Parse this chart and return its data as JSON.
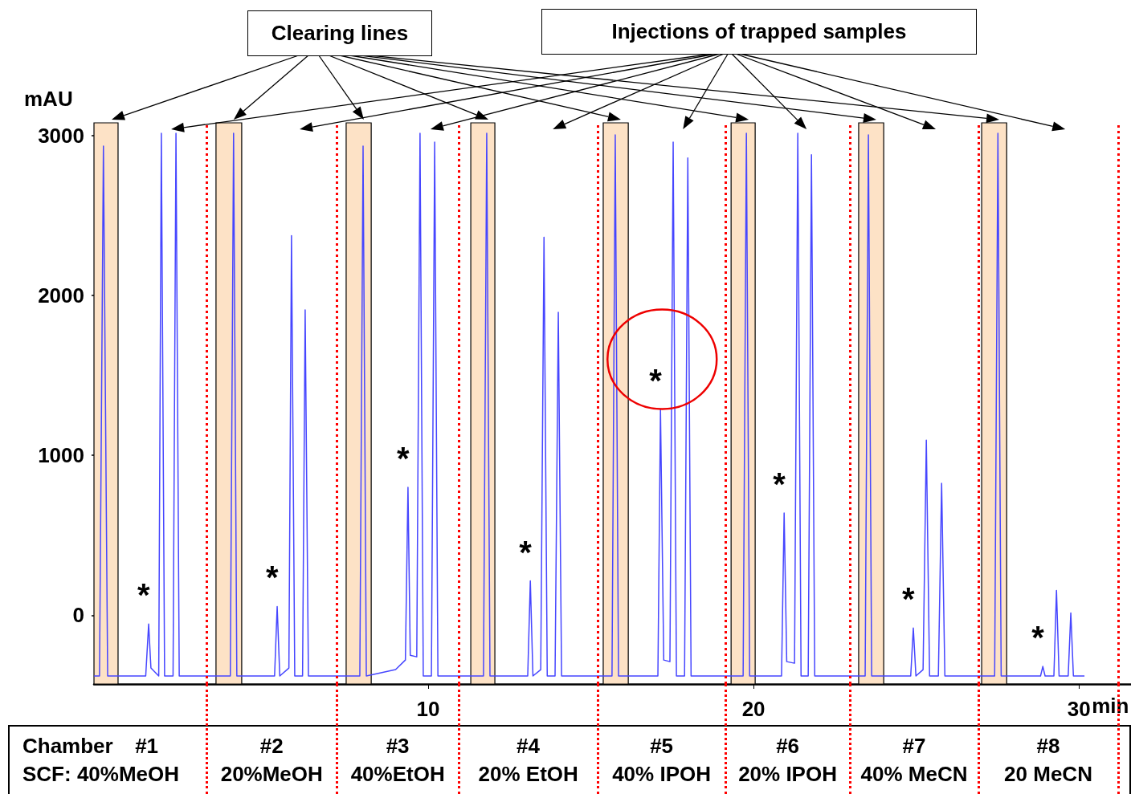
{
  "chart_data": {
    "type": "line",
    "xlabel": "min",
    "ylabel": "mAU",
    "xlim": [
      -0.27,
      31.6
    ],
    "xticks": [
      10,
      20,
      30
    ],
    "ylim": [
      -430,
      3080
    ],
    "yticks": [
      0,
      1000,
      2000,
      3000
    ],
    "series": [
      {
        "color": "#4646ff",
        "x": [
          -0.27,
          -0.1,
          0.02,
          0.15,
          1.32,
          1.41,
          1.48,
          1.72,
          1.8,
          1.9,
          2.16,
          2.25,
          2.35,
          3.92,
          4.02,
          4.12,
          5.28,
          5.36,
          5.44,
          5.72,
          5.8,
          5.9,
          6.14,
          6.22,
          6.32,
          7.9,
          8.0,
          8.1,
          9.0,
          9.3,
          9.38,
          9.45,
          9.65,
          9.75,
          9.85,
          10.1,
          10.2,
          10.3,
          11.7,
          11.8,
          11.9,
          13.06,
          13.14,
          13.22,
          13.46,
          13.56,
          13.66,
          13.9,
          14.0,
          14.1,
          15.65,
          15.75,
          15.85,
          17.06,
          17.14,
          17.24,
          17.43,
          17.53,
          17.63,
          17.88,
          17.98,
          18.08,
          19.68,
          19.78,
          19.88,
          20.86,
          20.94,
          21.02,
          21.26,
          21.36,
          21.46,
          21.68,
          21.78,
          21.88,
          23.43,
          23.53,
          23.63,
          24.83,
          24.91,
          24.99,
          25.21,
          25.31,
          25.41,
          25.68,
          25.78,
          25.88,
          27.41,
          27.51,
          27.61,
          28.82,
          28.89,
          28.96,
          29.23,
          29.31,
          29.39,
          29.67,
          29.75,
          29.83,
          30.17
        ],
        "values": [
          -380,
          -380,
          2935,
          -380,
          -380,
          -55,
          -330,
          -380,
          3015,
          -380,
          -380,
          3015,
          -380,
          -380,
          3015,
          -380,
          -380,
          55,
          -380,
          -330,
          2375,
          -380,
          -380,
          1910,
          -380,
          -380,
          2935,
          -380,
          -340,
          -280,
          800,
          -250,
          -260,
          3015,
          -380,
          -380,
          2960,
          -380,
          -380,
          3015,
          -380,
          -380,
          215,
          -380,
          -340,
          2365,
          -380,
          -380,
          1895,
          -380,
          -380,
          3005,
          -380,
          -380,
          1285,
          -280,
          -290,
          2960,
          -380,
          -380,
          2860,
          -380,
          -380,
          3015,
          -380,
          -380,
          640,
          -290,
          -300,
          3015,
          -380,
          -380,
          2880,
          -380,
          -380,
          3005,
          -380,
          -380,
          -80,
          -380,
          -340,
          1095,
          -380,
          -380,
          825,
          -380,
          -380,
          3015,
          -380,
          -380,
          -320,
          -380,
          -380,
          155,
          -380,
          -380,
          15,
          -380,
          -380
        ]
      }
    ],
    "bands": [
      {
        "axis": "x",
        "from": -0.27,
        "to": 0.47,
        "color": "#fde2c6"
      },
      {
        "axis": "x",
        "from": 3.48,
        "to": 4.27,
        "color": "#fde2c6"
      },
      {
        "axis": "x",
        "from": 7.48,
        "to": 8.25,
        "color": "#fde2c6"
      },
      {
        "axis": "x",
        "from": 11.31,
        "to": 12.05,
        "color": "#fde2c6"
      },
      {
        "axis": "x",
        "from": 15.38,
        "to": 16.15,
        "color": "#fde2c6"
      },
      {
        "axis": "x",
        "from": 19.31,
        "to": 20.05,
        "color": "#fde2c6"
      },
      {
        "axis": "x",
        "from": 23.23,
        "to": 24.0,
        "color": "#fde2c6"
      },
      {
        "axis": "x",
        "from": 27.01,
        "to": 27.78,
        "color": "#fde2c6"
      }
    ],
    "ref_lines": [
      {
        "axis": "x",
        "value": 3.19,
        "color": "#ff0000",
        "line_style": "dotted"
      },
      {
        "axis": "x",
        "value": 7.19,
        "color": "#ff0000",
        "line_style": "dotted"
      },
      {
        "axis": "x",
        "value": 10.94,
        "color": "#ff0000",
        "line_style": "dotted"
      },
      {
        "axis": "x",
        "value": 15.21,
        "color": "#ff0000",
        "line_style": "dotted"
      },
      {
        "axis": "x",
        "value": 19.14,
        "color": "#ff0000",
        "line_style": "dotted"
      },
      {
        "axis": "x",
        "value": 22.96,
        "color": "#ff0000",
        "line_style": "dotted"
      },
      {
        "axis": "x",
        "value": 26.91,
        "color": "#ff0000",
        "line_style": "dotted"
      },
      {
        "axis": "x",
        "value": 31.21,
        "color": "#ff0000",
        "line_style": "dotted"
      }
    ],
    "annotations": [
      "Clearing lines",
      "Injections of trapped samples",
      {
        "text": "*",
        "x": 1.41,
        "y": -55
      },
      {
        "text": "*",
        "x": 5.36,
        "y": 55
      },
      {
        "text": "*",
        "x": 9.38,
        "y": 800
      },
      {
        "text": "*",
        "x": 13.14,
        "y": 215
      },
      {
        "text": "*",
        "x": 17.14,
        "y": 1285
      },
      {
        "text": "*",
        "x": 20.94,
        "y": 640
      },
      {
        "text": "*",
        "x": 24.91,
        "y": -80
      },
      {
        "text": "*",
        "x": 28.89,
        "y": -320
      },
      "Chamber",
      "SCF:",
      "#1",
      "40%MeOH",
      "#2",
      "20%MeOH",
      "#3",
      "40%EtOH",
      "#4",
      "20% EtOH",
      "#5",
      "40% IPOH",
      "#6",
      "20% IPOH",
      "#7",
      "40% MeCN",
      "#8",
      "20 MeCN"
    ]
  }
}
